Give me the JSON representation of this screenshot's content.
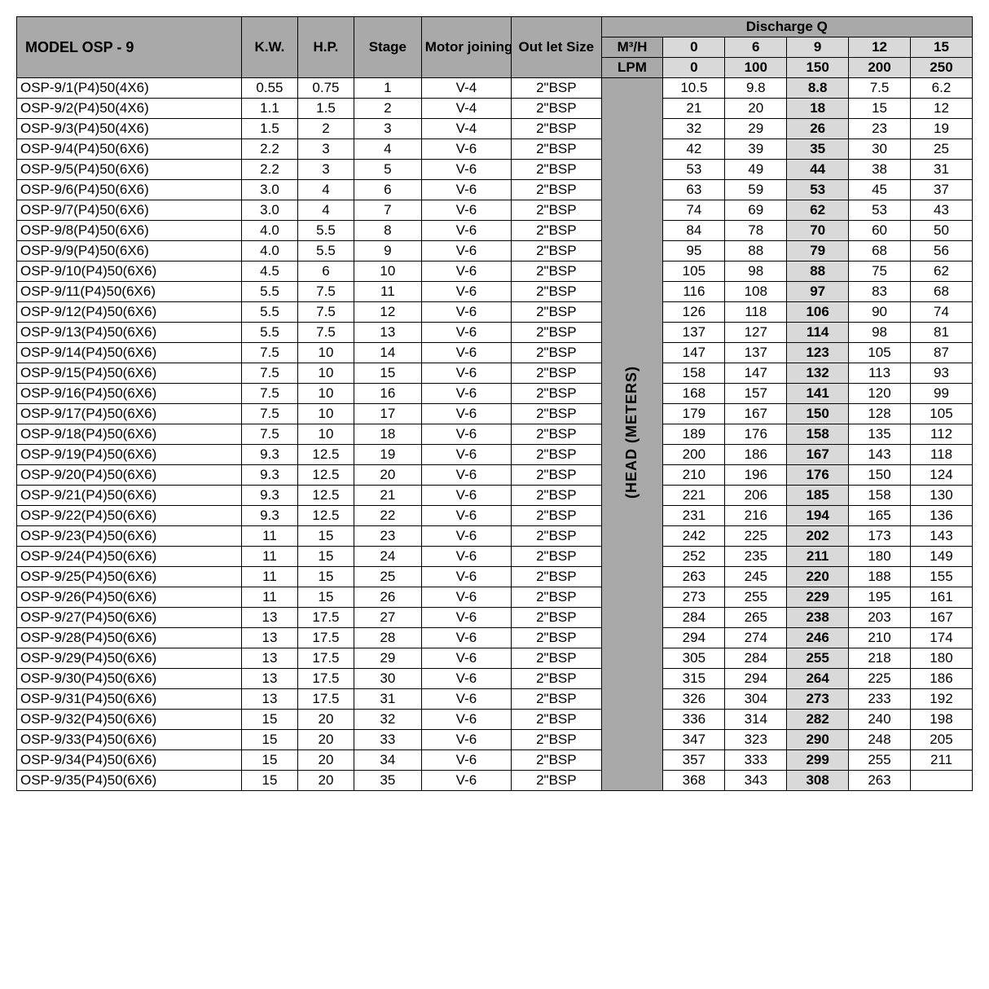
{
  "header": {
    "model": "MODEL  OSP - 9",
    "kw": "K.W.",
    "hp": "H.P.",
    "stage": "Stage",
    "motor": "Motor joining",
    "outlet": "Out let Size",
    "discharge": "Discharge Q",
    "m3h": "M³/H",
    "lpm": "LPM",
    "head": "(HEAD (METERS)"
  },
  "discharge_m3h": [
    "0",
    "6",
    "9",
    "12",
    "15"
  ],
  "discharge_lpm": [
    "0",
    "100",
    "150",
    "200",
    "250"
  ],
  "colors": {
    "header_dark": "#a9a9a9",
    "header_light": "#d9d9d9",
    "border": "#000000",
    "background": "#ffffff"
  },
  "rows": [
    {
      "model": "OSP-9/1(P4)50(4X6)",
      "kw": "0.55",
      "hp": "0.75",
      "stage": "1",
      "motor": "V-4",
      "outlet": "2\"BSP",
      "d": [
        "10.5",
        "9.8",
        "8.8",
        "7.5",
        "6.2"
      ]
    },
    {
      "model": "OSP-9/2(P4)50(4X6)",
      "kw": "1.1",
      "hp": "1.5",
      "stage": "2",
      "motor": "V-4",
      "outlet": "2\"BSP",
      "d": [
        "21",
        "20",
        "18",
        "15",
        "12"
      ]
    },
    {
      "model": "OSP-9/3(P4)50(4X6)",
      "kw": "1.5",
      "hp": "2",
      "stage": "3",
      "motor": "V-4",
      "outlet": "2\"BSP",
      "d": [
        "32",
        "29",
        "26",
        "23",
        "19"
      ]
    },
    {
      "model": "OSP-9/4(P4)50(6X6)",
      "kw": "2.2",
      "hp": "3",
      "stage": "4",
      "motor": "V-6",
      "outlet": "2\"BSP",
      "d": [
        "42",
        "39",
        "35",
        "30",
        "25"
      ]
    },
    {
      "model": "OSP-9/5(P4)50(6X6)",
      "kw": "2.2",
      "hp": "3",
      "stage": "5",
      "motor": "V-6",
      "outlet": "2\"BSP",
      "d": [
        "53",
        "49",
        "44",
        "38",
        "31"
      ]
    },
    {
      "model": "OSP-9/6(P4)50(6X6)",
      "kw": "3.0",
      "hp": "4",
      "stage": "6",
      "motor": "V-6",
      "outlet": "2\"BSP",
      "d": [
        "63",
        "59",
        "53",
        "45",
        "37"
      ]
    },
    {
      "model": "OSP-9/7(P4)50(6X6)",
      "kw": "3.0",
      "hp": "4",
      "stage": "7",
      "motor": "V-6",
      "outlet": "2\"BSP",
      "d": [
        "74",
        "69",
        "62",
        "53",
        "43"
      ]
    },
    {
      "model": "OSP-9/8(P4)50(6X6)",
      "kw": "4.0",
      "hp": "5.5",
      "stage": "8",
      "motor": "V-6",
      "outlet": "2\"BSP",
      "d": [
        "84",
        "78",
        "70",
        "60",
        "50"
      ]
    },
    {
      "model": "OSP-9/9(P4)50(6X6)",
      "kw": "4.0",
      "hp": "5.5",
      "stage": "9",
      "motor": "V-6",
      "outlet": "2\"BSP",
      "d": [
        "95",
        "88",
        "79",
        "68",
        "56"
      ]
    },
    {
      "model": "OSP-9/10(P4)50(6X6)",
      "kw": "4.5",
      "hp": "6",
      "stage": "10",
      "motor": "V-6",
      "outlet": "2\"BSP",
      "d": [
        "105",
        "98",
        "88",
        "75",
        "62"
      ]
    },
    {
      "model": "OSP-9/11(P4)50(6X6)",
      "kw": "5.5",
      "hp": "7.5",
      "stage": "11",
      "motor": "V-6",
      "outlet": "2\"BSP",
      "d": [
        "116",
        "108",
        "97",
        "83",
        "68"
      ]
    },
    {
      "model": "OSP-9/12(P4)50(6X6)",
      "kw": "5.5",
      "hp": "7.5",
      "stage": "12",
      "motor": "V-6",
      "outlet": "2\"BSP",
      "d": [
        "126",
        "118",
        "106",
        "90",
        "74"
      ]
    },
    {
      "model": "OSP-9/13(P4)50(6X6)",
      "kw": "5.5",
      "hp": "7.5",
      "stage": "13",
      "motor": "V-6",
      "outlet": "2\"BSP",
      "d": [
        "137",
        "127",
        "114",
        "98",
        "81"
      ]
    },
    {
      "model": "OSP-9/14(P4)50(6X6)",
      "kw": "7.5",
      "hp": "10",
      "stage": "14",
      "motor": "V-6",
      "outlet": "2\"BSP",
      "d": [
        "147",
        "137",
        "123",
        "105",
        "87"
      ]
    },
    {
      "model": "OSP-9/15(P4)50(6X6)",
      "kw": "7.5",
      "hp": "10",
      "stage": "15",
      "motor": "V-6",
      "outlet": "2\"BSP",
      "d": [
        "158",
        "147",
        "132",
        "113",
        "93"
      ]
    },
    {
      "model": "OSP-9/16(P4)50(6X6)",
      "kw": "7.5",
      "hp": "10",
      "stage": "16",
      "motor": "V-6",
      "outlet": "2\"BSP",
      "d": [
        "168",
        "157",
        "141",
        "120",
        "99"
      ]
    },
    {
      "model": "OSP-9/17(P4)50(6X6)",
      "kw": "7.5",
      "hp": "10",
      "stage": "17",
      "motor": "V-6",
      "outlet": "2\"BSP",
      "d": [
        "179",
        "167",
        "150",
        "128",
        "105"
      ]
    },
    {
      "model": "OSP-9/18(P4)50(6X6)",
      "kw": "7.5",
      "hp": "10",
      "stage": "18",
      "motor": "V-6",
      "outlet": "2\"BSP",
      "d": [
        "189",
        "176",
        "158",
        "135",
        "112"
      ]
    },
    {
      "model": "OSP-9/19(P4)50(6X6)",
      "kw": "9.3",
      "hp": "12.5",
      "stage": "19",
      "motor": "V-6",
      "outlet": "2\"BSP",
      "d": [
        "200",
        "186",
        "167",
        "143",
        "118"
      ]
    },
    {
      "model": "OSP-9/20(P4)50(6X6)",
      "kw": "9.3",
      "hp": "12.5",
      "stage": "20",
      "motor": "V-6",
      "outlet": "2\"BSP",
      "d": [
        "210",
        "196",
        "176",
        "150",
        "124"
      ]
    },
    {
      "model": "OSP-9/21(P4)50(6X6)",
      "kw": "9.3",
      "hp": "12.5",
      "stage": "21",
      "motor": "V-6",
      "outlet": "2\"BSP",
      "d": [
        "221",
        "206",
        "185",
        "158",
        "130"
      ]
    },
    {
      "model": "OSP-9/22(P4)50(6X6)",
      "kw": "9.3",
      "hp": "12.5",
      "stage": "22",
      "motor": "V-6",
      "outlet": "2\"BSP",
      "d": [
        "231",
        "216",
        "194",
        "165",
        "136"
      ]
    },
    {
      "model": "OSP-9/23(P4)50(6X6)",
      "kw": "11",
      "hp": "15",
      "stage": "23",
      "motor": "V-6",
      "outlet": "2\"BSP",
      "d": [
        "242",
        "225",
        "202",
        "173",
        "143"
      ]
    },
    {
      "model": "OSP-9/24(P4)50(6X6)",
      "kw": "11",
      "hp": "15",
      "stage": "24",
      "motor": "V-6",
      "outlet": "2\"BSP",
      "d": [
        "252",
        "235",
        "211",
        "180",
        "149"
      ]
    },
    {
      "model": "OSP-9/25(P4)50(6X6)",
      "kw": "11",
      "hp": "15",
      "stage": "25",
      "motor": "V-6",
      "outlet": "2\"BSP",
      "d": [
        "263",
        "245",
        "220",
        "188",
        "155"
      ]
    },
    {
      "model": "OSP-9/26(P4)50(6X6)",
      "kw": "11",
      "hp": "15",
      "stage": "26",
      "motor": "V-6",
      "outlet": "2\"BSP",
      "d": [
        "273",
        "255",
        "229",
        "195",
        "161"
      ]
    },
    {
      "model": "OSP-9/27(P4)50(6X6)",
      "kw": "13",
      "hp": "17.5",
      "stage": "27",
      "motor": "V-6",
      "outlet": "2\"BSP",
      "d": [
        "284",
        "265",
        "238",
        "203",
        "167"
      ]
    },
    {
      "model": "OSP-9/28(P4)50(6X6)",
      "kw": "13",
      "hp": "17.5",
      "stage": "28",
      "motor": "V-6",
      "outlet": "2\"BSP",
      "d": [
        "294",
        "274",
        "246",
        "210",
        "174"
      ]
    },
    {
      "model": "OSP-9/29(P4)50(6X6)",
      "kw": "13",
      "hp": "17.5",
      "stage": "29",
      "motor": "V-6",
      "outlet": "2\"BSP",
      "d": [
        "305",
        "284",
        "255",
        "218",
        "180"
      ]
    },
    {
      "model": "OSP-9/30(P4)50(6X6)",
      "kw": "13",
      "hp": "17.5",
      "stage": "30",
      "motor": "V-6",
      "outlet": "2\"BSP",
      "d": [
        "315",
        "294",
        "264",
        "225",
        "186"
      ]
    },
    {
      "model": "OSP-9/31(P4)50(6X6)",
      "kw": "13",
      "hp": "17.5",
      "stage": "31",
      "motor": "V-6",
      "outlet": "2\"BSP",
      "d": [
        "326",
        "304",
        "273",
        "233",
        "192"
      ]
    },
    {
      "model": "OSP-9/32(P4)50(6X6)",
      "kw": "15",
      "hp": "20",
      "stage": "32",
      "motor": "V-6",
      "outlet": "2\"BSP",
      "d": [
        "336",
        "314",
        "282",
        "240",
        "198"
      ]
    },
    {
      "model": "OSP-9/33(P4)50(6X6)",
      "kw": "15",
      "hp": "20",
      "stage": "33",
      "motor": "V-6",
      "outlet": "2\"BSP",
      "d": [
        "347",
        "323",
        "290",
        "248",
        "205"
      ]
    },
    {
      "model": "OSP-9/34(P4)50(6X6)",
      "kw": "15",
      "hp": "20",
      "stage": "34",
      "motor": "V-6",
      "outlet": "2\"BSP",
      "d": [
        "357",
        "333",
        "299",
        "255",
        "211"
      ]
    },
    {
      "model": "OSP-9/35(P4)50(6X6)",
      "kw": "15",
      "hp": "20",
      "stage": "35",
      "motor": "V-6",
      "outlet": "2\"BSP",
      "d": [
        "368",
        "343",
        "308",
        "263",
        ""
      ]
    }
  ]
}
